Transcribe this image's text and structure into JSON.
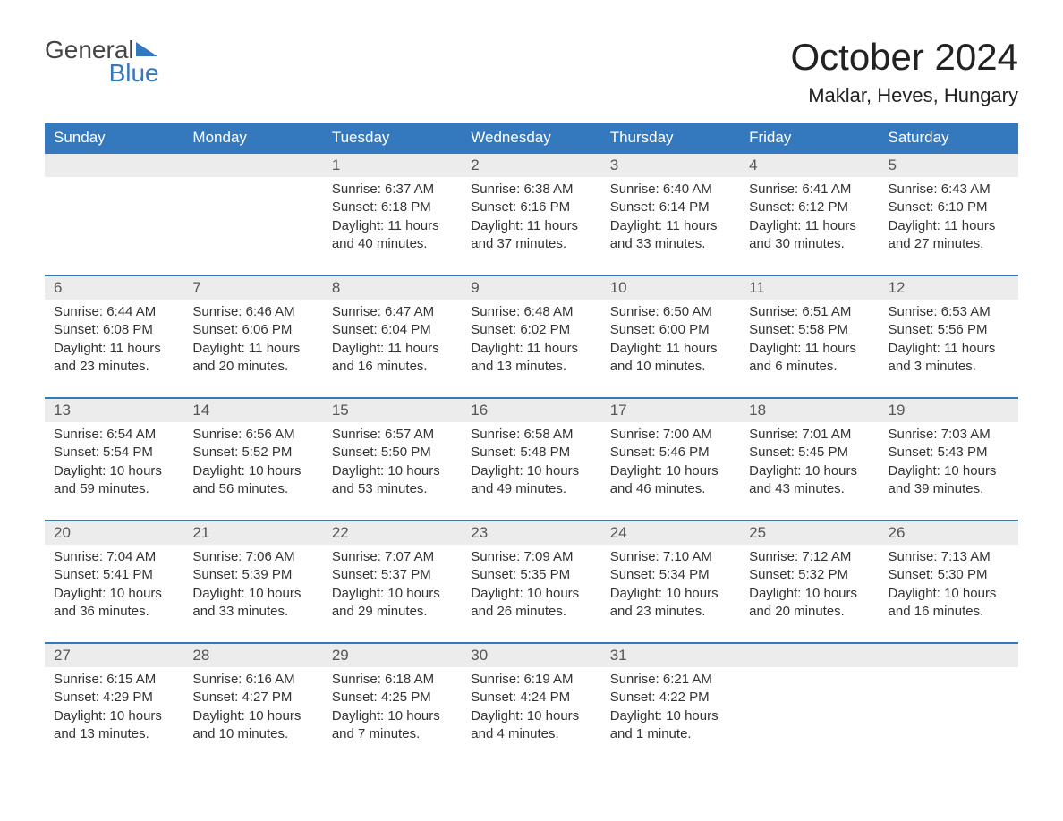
{
  "colors": {
    "header_bg": "#3478bd",
    "header_text": "#ffffff",
    "daynum_bg": "#ececec",
    "daynum_text": "#555555",
    "body_text": "#333333",
    "page_bg": "#ffffff",
    "row_divider": "#3478bd"
  },
  "typography": {
    "title_fontsize": 42,
    "location_fontsize": 22,
    "header_fontsize": 17,
    "daynum_fontsize": 17,
    "body_fontsize": 15,
    "font_family": "Arial"
  },
  "logo": {
    "text1": "General",
    "text2": "Blue",
    "icon_name": "triangle-flag-icon"
  },
  "title": "October 2024",
  "location": "Maklar, Heves, Hungary",
  "day_headers": [
    "Sunday",
    "Monday",
    "Tuesday",
    "Wednesday",
    "Thursday",
    "Friday",
    "Saturday"
  ],
  "labels": {
    "sunrise": "Sunrise:",
    "sunset": "Sunset:",
    "daylight": "Daylight:"
  },
  "weeks": [
    [
      null,
      null,
      {
        "n": "1",
        "sunrise": "6:37 AM",
        "sunset": "6:18 PM",
        "daylight": "11 hours and 40 minutes."
      },
      {
        "n": "2",
        "sunrise": "6:38 AM",
        "sunset": "6:16 PM",
        "daylight": "11 hours and 37 minutes."
      },
      {
        "n": "3",
        "sunrise": "6:40 AM",
        "sunset": "6:14 PM",
        "daylight": "11 hours and 33 minutes."
      },
      {
        "n": "4",
        "sunrise": "6:41 AM",
        "sunset": "6:12 PM",
        "daylight": "11 hours and 30 minutes."
      },
      {
        "n": "5",
        "sunrise": "6:43 AM",
        "sunset": "6:10 PM",
        "daylight": "11 hours and 27 minutes."
      }
    ],
    [
      {
        "n": "6",
        "sunrise": "6:44 AM",
        "sunset": "6:08 PM",
        "daylight": "11 hours and 23 minutes."
      },
      {
        "n": "7",
        "sunrise": "6:46 AM",
        "sunset": "6:06 PM",
        "daylight": "11 hours and 20 minutes."
      },
      {
        "n": "8",
        "sunrise": "6:47 AM",
        "sunset": "6:04 PM",
        "daylight": "11 hours and 16 minutes."
      },
      {
        "n": "9",
        "sunrise": "6:48 AM",
        "sunset": "6:02 PM",
        "daylight": "11 hours and 13 minutes."
      },
      {
        "n": "10",
        "sunrise": "6:50 AM",
        "sunset": "6:00 PM",
        "daylight": "11 hours and 10 minutes."
      },
      {
        "n": "11",
        "sunrise": "6:51 AM",
        "sunset": "5:58 PM",
        "daylight": "11 hours and 6 minutes."
      },
      {
        "n": "12",
        "sunrise": "6:53 AM",
        "sunset": "5:56 PM",
        "daylight": "11 hours and 3 minutes."
      }
    ],
    [
      {
        "n": "13",
        "sunrise": "6:54 AM",
        "sunset": "5:54 PM",
        "daylight": "10 hours and 59 minutes."
      },
      {
        "n": "14",
        "sunrise": "6:56 AM",
        "sunset": "5:52 PM",
        "daylight": "10 hours and 56 minutes."
      },
      {
        "n": "15",
        "sunrise": "6:57 AM",
        "sunset": "5:50 PM",
        "daylight": "10 hours and 53 minutes."
      },
      {
        "n": "16",
        "sunrise": "6:58 AM",
        "sunset": "5:48 PM",
        "daylight": "10 hours and 49 minutes."
      },
      {
        "n": "17",
        "sunrise": "7:00 AM",
        "sunset": "5:46 PM",
        "daylight": "10 hours and 46 minutes."
      },
      {
        "n": "18",
        "sunrise": "7:01 AM",
        "sunset": "5:45 PM",
        "daylight": "10 hours and 43 minutes."
      },
      {
        "n": "19",
        "sunrise": "7:03 AM",
        "sunset": "5:43 PM",
        "daylight": "10 hours and 39 minutes."
      }
    ],
    [
      {
        "n": "20",
        "sunrise": "7:04 AM",
        "sunset": "5:41 PM",
        "daylight": "10 hours and 36 minutes."
      },
      {
        "n": "21",
        "sunrise": "7:06 AM",
        "sunset": "5:39 PM",
        "daylight": "10 hours and 33 minutes."
      },
      {
        "n": "22",
        "sunrise": "7:07 AM",
        "sunset": "5:37 PM",
        "daylight": "10 hours and 29 minutes."
      },
      {
        "n": "23",
        "sunrise": "7:09 AM",
        "sunset": "5:35 PM",
        "daylight": "10 hours and 26 minutes."
      },
      {
        "n": "24",
        "sunrise": "7:10 AM",
        "sunset": "5:34 PM",
        "daylight": "10 hours and 23 minutes."
      },
      {
        "n": "25",
        "sunrise": "7:12 AM",
        "sunset": "5:32 PM",
        "daylight": "10 hours and 20 minutes."
      },
      {
        "n": "26",
        "sunrise": "7:13 AM",
        "sunset": "5:30 PM",
        "daylight": "10 hours and 16 minutes."
      }
    ],
    [
      {
        "n": "27",
        "sunrise": "6:15 AM",
        "sunset": "4:29 PM",
        "daylight": "10 hours and 13 minutes."
      },
      {
        "n": "28",
        "sunrise": "6:16 AM",
        "sunset": "4:27 PM",
        "daylight": "10 hours and 10 minutes."
      },
      {
        "n": "29",
        "sunrise": "6:18 AM",
        "sunset": "4:25 PM",
        "daylight": "10 hours and 7 minutes."
      },
      {
        "n": "30",
        "sunrise": "6:19 AM",
        "sunset": "4:24 PM",
        "daylight": "10 hours and 4 minutes."
      },
      {
        "n": "31",
        "sunrise": "6:21 AM",
        "sunset": "4:22 PM",
        "daylight": "10 hours and 1 minute."
      },
      null,
      null
    ]
  ]
}
